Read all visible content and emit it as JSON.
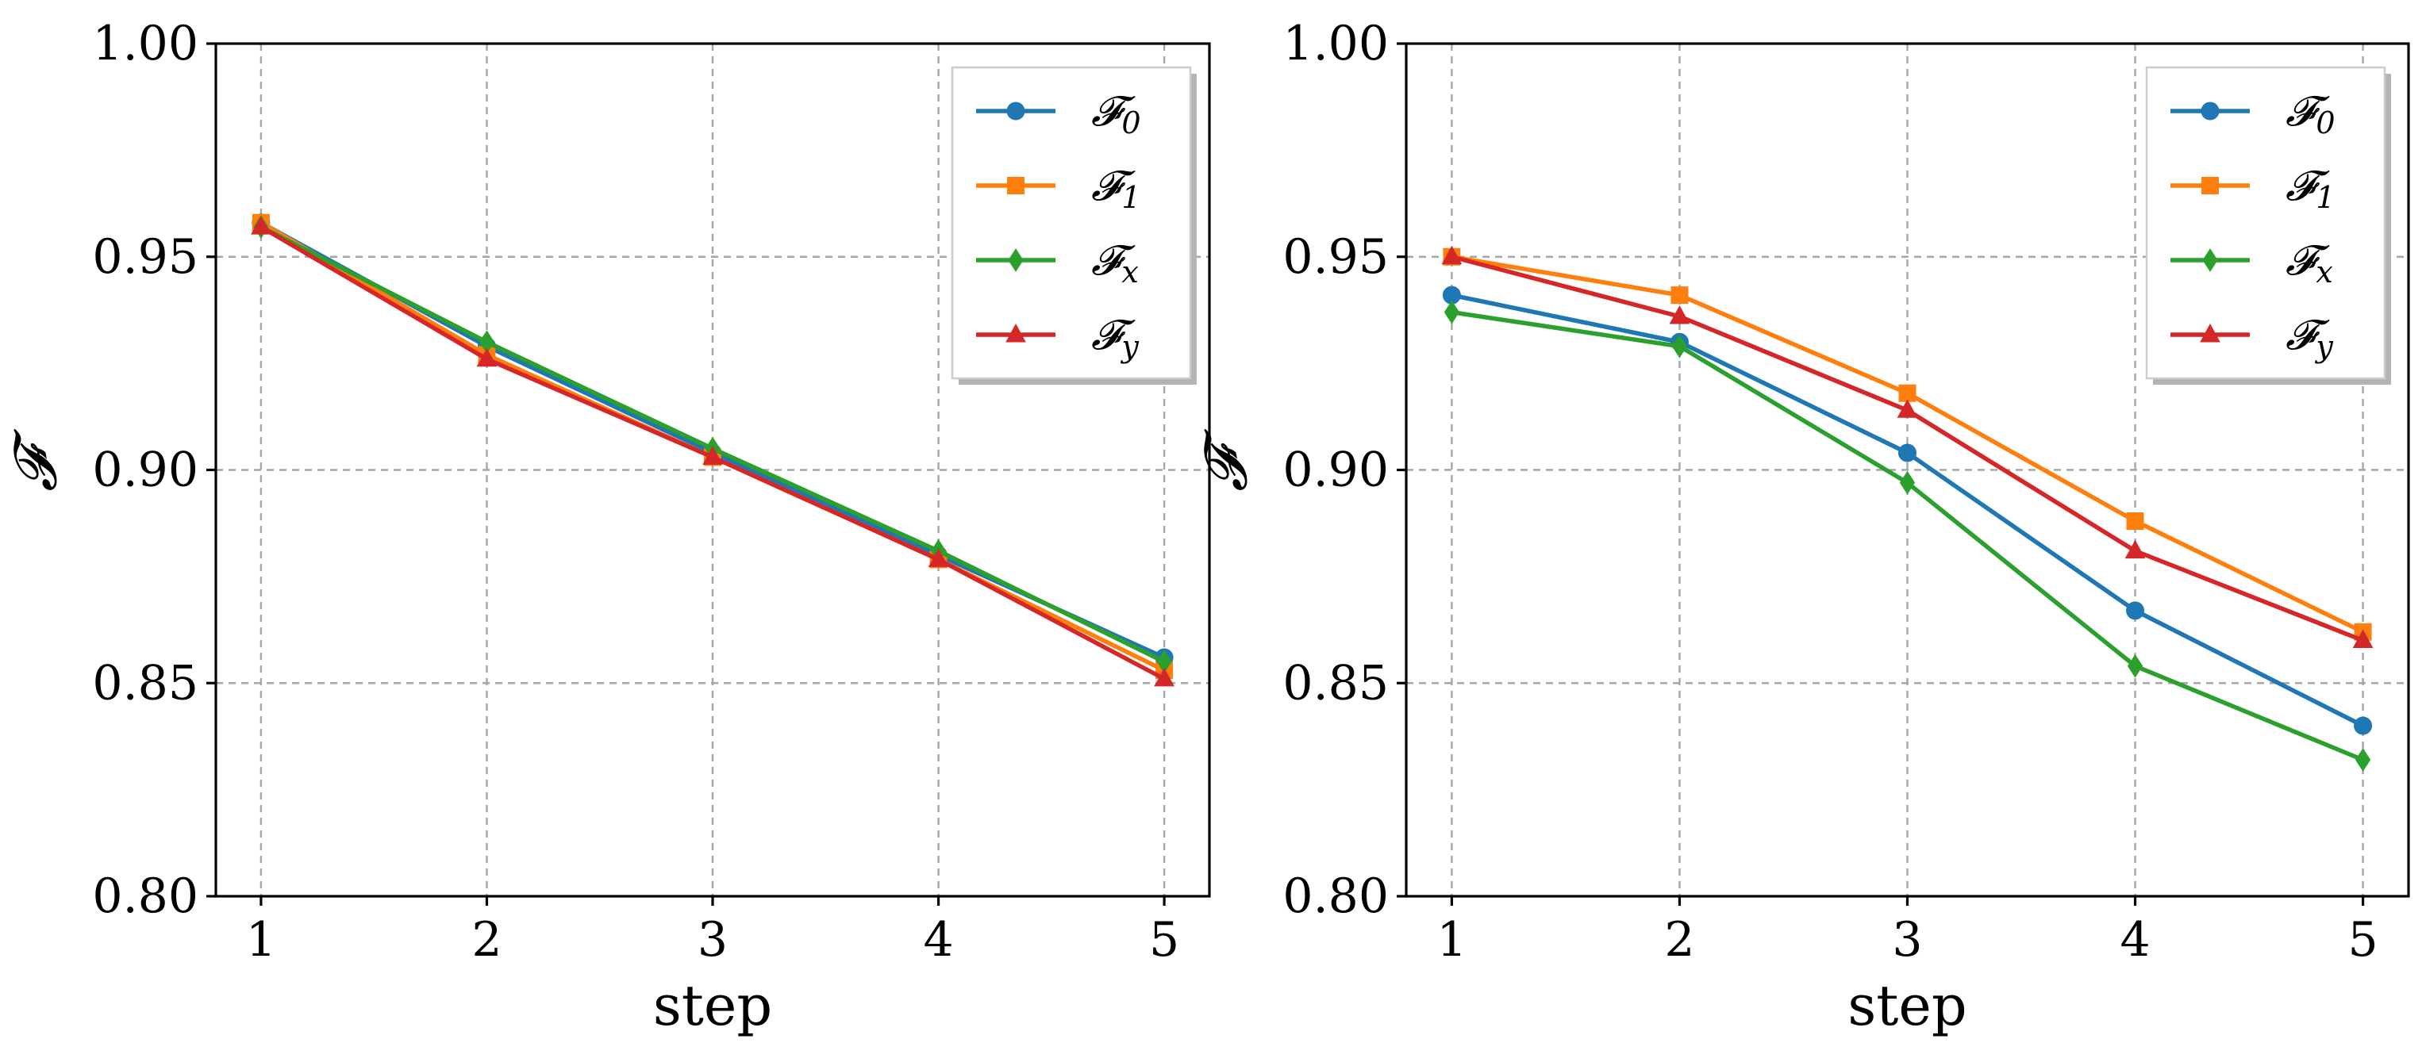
{
  "chart_data": [
    {
      "type": "line",
      "title": "",
      "xlabel": "step",
      "ylabel": "𝓕",
      "x": [
        1,
        2,
        3,
        4,
        5
      ],
      "xlim": [
        0.8,
        5.2
      ],
      "ylim": [
        0.8,
        1.0
      ],
      "xticks": [
        "1",
        "2",
        "3",
        "4",
        "5"
      ],
      "yticks": [
        "0.80",
        "0.85",
        "0.90",
        "0.95",
        "1.00"
      ],
      "grid": true,
      "legend_position": "top-right",
      "series": [
        {
          "name": "𝓕",
          "sub": "0",
          "color": "#1f77b4",
          "marker": "circle",
          "values": [
            0.958,
            0.929,
            0.904,
            0.88,
            0.856
          ]
        },
        {
          "name": "𝓕",
          "sub": "1",
          "color": "#ff7f0e",
          "marker": "square",
          "values": [
            0.958,
            0.927,
            0.903,
            0.879,
            0.853
          ]
        },
        {
          "name": "𝓕",
          "sub": "x",
          "color": "#2ca02c",
          "marker": "diamond",
          "values": [
            0.957,
            0.93,
            0.905,
            0.881,
            0.855
          ]
        },
        {
          "name": "𝓕",
          "sub": "y",
          "color": "#d62728",
          "marker": "triangle",
          "values": [
            0.957,
            0.926,
            0.903,
            0.879,
            0.851
          ]
        }
      ]
    },
    {
      "type": "line",
      "title": "",
      "xlabel": "step",
      "ylabel": "𝓕",
      "x": [
        1,
        2,
        3,
        4,
        5
      ],
      "xlim": [
        0.8,
        5.2
      ],
      "ylim": [
        0.8,
        1.0
      ],
      "xticks": [
        "1",
        "2",
        "3",
        "4",
        "5"
      ],
      "yticks": [
        "0.80",
        "0.85",
        "0.90",
        "0.95",
        "1.00"
      ],
      "grid": true,
      "legend_position": "top-right",
      "series": [
        {
          "name": "𝓕",
          "sub": "0",
          "color": "#1f77b4",
          "marker": "circle",
          "values": [
            0.941,
            0.93,
            0.904,
            0.867,
            0.84
          ]
        },
        {
          "name": "𝓕",
          "sub": "1",
          "color": "#ff7f0e",
          "marker": "square",
          "values": [
            0.95,
            0.941,
            0.918,
            0.888,
            0.862
          ]
        },
        {
          "name": "𝓕",
          "sub": "x",
          "color": "#2ca02c",
          "marker": "diamond",
          "values": [
            0.937,
            0.929,
            0.897,
            0.854,
            0.832
          ]
        },
        {
          "name": "𝓕",
          "sub": "y",
          "color": "#d62728",
          "marker": "triangle",
          "values": [
            0.95,
            0.936,
            0.914,
            0.881,
            0.86
          ]
        }
      ]
    }
  ]
}
